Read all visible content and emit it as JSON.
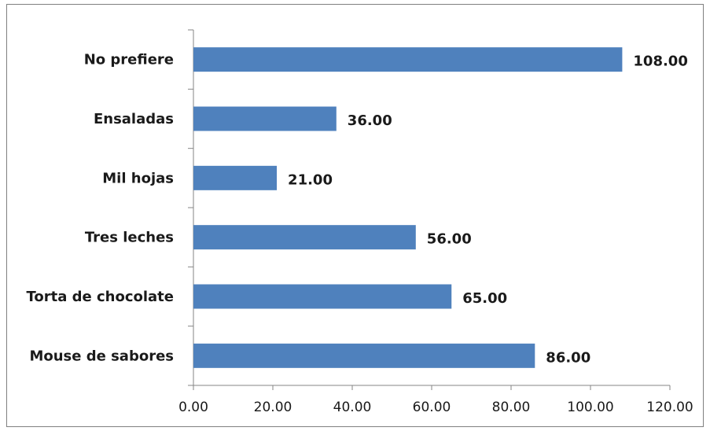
{
  "chart_data": {
    "type": "bar",
    "orientation": "horizontal",
    "categories": [
      "No prefiere",
      "Ensaladas",
      "Mil hojas",
      "Tres leches",
      "Torta de chocolate",
      "Mouse de sabores"
    ],
    "values": [
      108,
      36,
      21,
      56,
      65,
      86
    ],
    "value_labels": [
      "108.00",
      "36.00",
      "21.00",
      "56.00",
      "65.00",
      "86.00"
    ],
    "x_ticks": [
      "0.00",
      "20.00",
      "40.00",
      "60.00",
      "80.00",
      "100.00",
      "120.00"
    ],
    "xlim": [
      0,
      120
    ],
    "title": "",
    "xlabel": "",
    "ylabel": "",
    "grid": false,
    "legend": "none",
    "bar_color": "#4f81bd"
  }
}
